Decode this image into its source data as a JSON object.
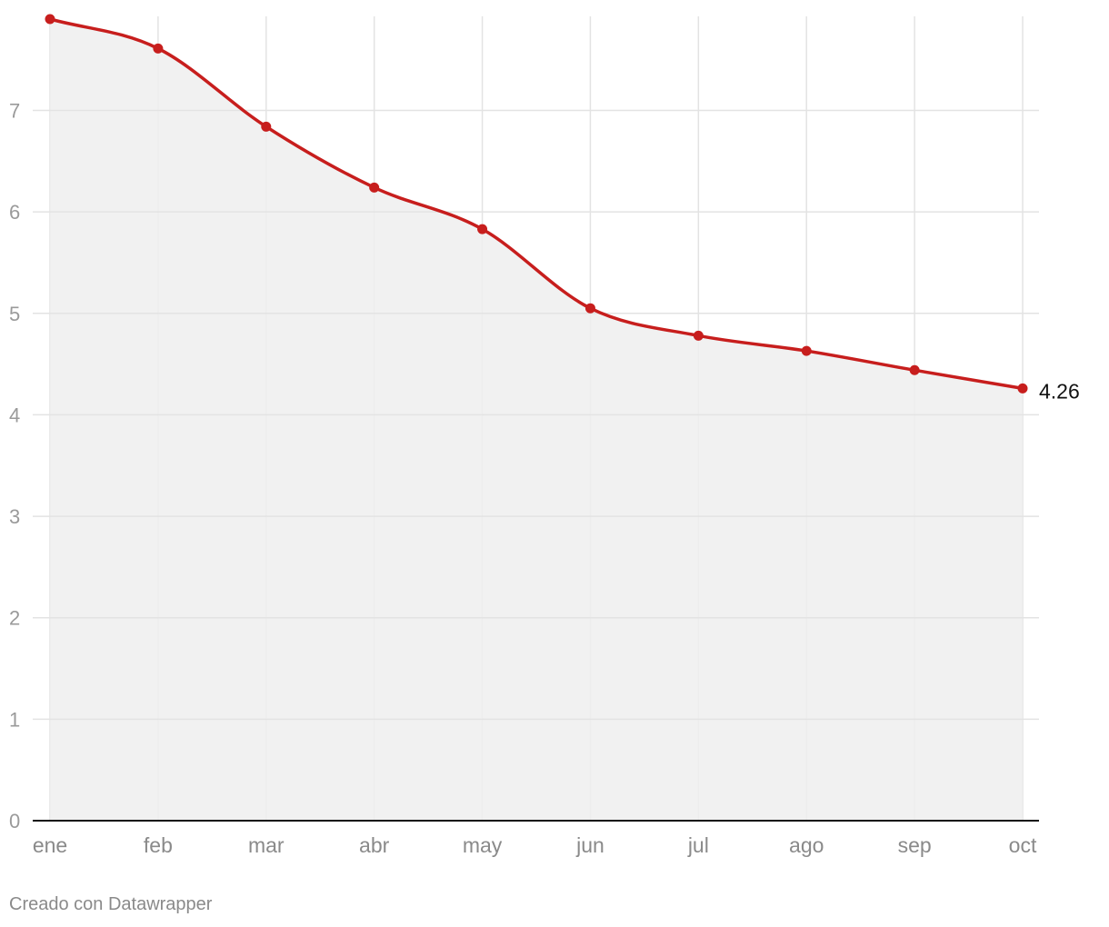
{
  "chart_data": {
    "type": "area",
    "categories": [
      "ene",
      "feb",
      "mar",
      "abr",
      "may",
      "jun",
      "jul",
      "ago",
      "sep",
      "oct"
    ],
    "series": [
      {
        "values": [
          7.9,
          7.61,
          6.84,
          6.24,
          5.83,
          5.05,
          4.78,
          4.63,
          4.44,
          4.26
        ]
      }
    ],
    "ylim": [
      0,
      7.9
    ],
    "yticks": [
      0,
      1,
      2,
      3,
      4,
      5,
      6,
      7
    ],
    "grid": true,
    "end_label": "4.26",
    "colors": {
      "line": "#c71e1d",
      "area": "#efefef",
      "grid": "#e3e3e3",
      "baseline": "#111111"
    }
  },
  "footer": {
    "credit": "Creado con Datawrapper"
  }
}
